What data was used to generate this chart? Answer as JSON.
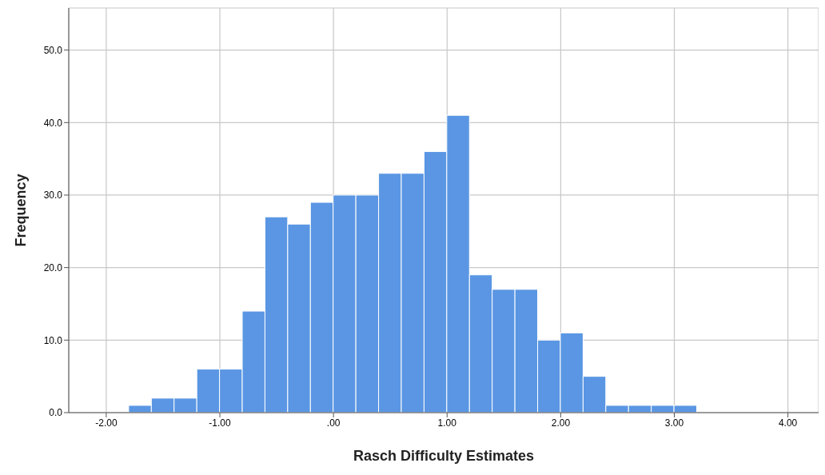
{
  "chart_data": {
    "type": "histogram",
    "xlabel": "Rasch Difficulty Estimates",
    "ylabel": "Frequency",
    "bins": [
      -1.8,
      -1.6,
      -1.4,
      -1.2,
      -1.0,
      -0.8,
      -0.6,
      -0.4,
      -0.2,
      0.0,
      0.2,
      0.4,
      0.6,
      0.8,
      1.0,
      1.2,
      1.4,
      1.6,
      1.8,
      2.0,
      2.2,
      2.4,
      2.6,
      2.8,
      3.0,
      3.2
    ],
    "values": [
      1,
      2,
      2,
      6,
      6,
      14,
      27,
      26,
      29,
      30,
      30,
      33,
      33,
      36,
      41,
      19,
      17,
      17,
      10,
      11,
      5,
      1,
      1,
      1,
      1
    ],
    "color": "#5a96e3",
    "xlim": [
      -2.33,
      4.27
    ],
    "xticks": [
      {
        "value": -2,
        "label": "-2.00"
      },
      {
        "value": -1,
        "label": "-1.00"
      },
      {
        "value": 0,
        "label": ".00"
      },
      {
        "value": 1,
        "label": "1.00"
      },
      {
        "value": 2,
        "label": "2.00"
      },
      {
        "value": 3,
        "label": "3.00"
      },
      {
        "value": 4,
        "label": "4.00"
      }
    ],
    "ylim": [
      0,
      55.8
    ],
    "yticks": [
      {
        "value": 0,
        "label": "0.0"
      },
      {
        "value": 10,
        "label": "10.0"
      },
      {
        "value": 20,
        "label": "20.0"
      },
      {
        "value": 30,
        "label": "30.0"
      },
      {
        "value": 40,
        "label": "40.0"
      },
      {
        "value": 50,
        "label": "50.0"
      }
    ],
    "grid": true
  }
}
